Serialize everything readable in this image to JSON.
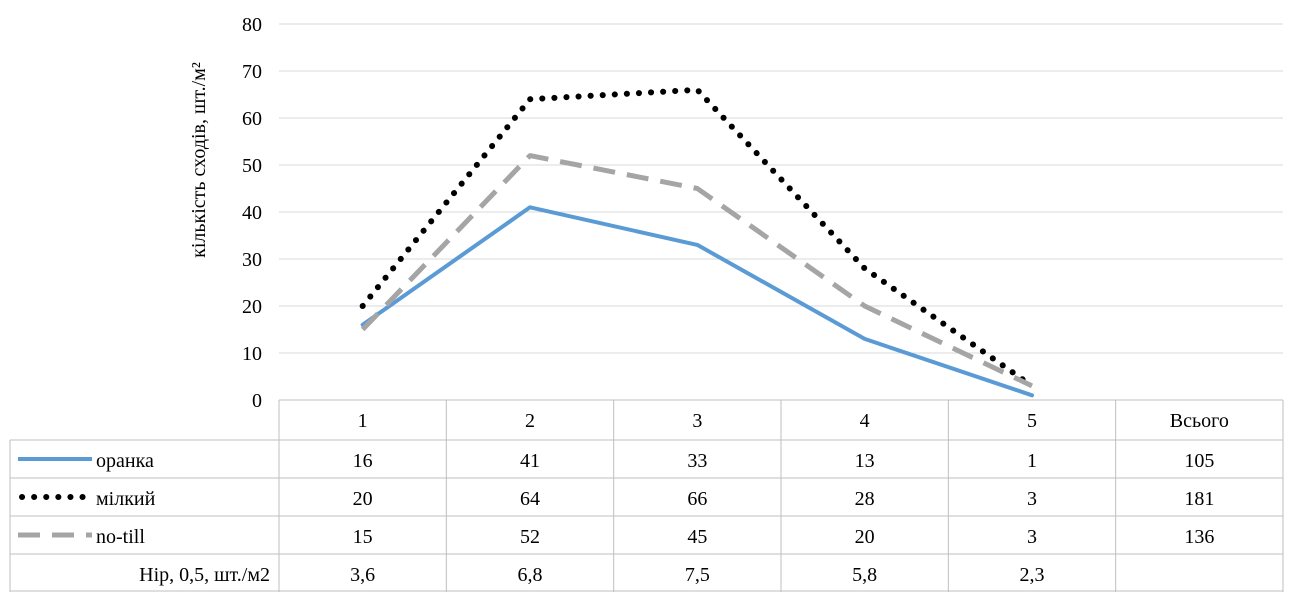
{
  "chart_data": {
    "type": "line",
    "ylabel": "кількість сходів, шт./м²",
    "ylim": [
      0,
      80
    ],
    "yticks": [
      0,
      10,
      20,
      30,
      40,
      50,
      60,
      70,
      80
    ],
    "grid": true,
    "legend": "data-table-left",
    "categories": [
      "1",
      "2",
      "3",
      "4",
      "5"
    ],
    "total_header": "Всього",
    "series": [
      {
        "name": "оранка",
        "values": [
          16,
          41,
          33,
          13,
          1
        ],
        "total": "105",
        "color": "#5b9bd5",
        "style": "solid"
      },
      {
        "name": "мілкий",
        "values": [
          20,
          64,
          66,
          28,
          3
        ],
        "total": "181",
        "color": "#000000",
        "style": "dotted"
      },
      {
        "name": "no-till",
        "values": [
          15,
          52,
          45,
          20,
          3
        ],
        "total": "136",
        "color": "#a5a5a5",
        "style": "dashed"
      }
    ],
    "table_plot_values": [
      [
        16,
        41,
        33,
        13,
        1
      ],
      [
        20,
        64,
        66,
        28,
        3
      ],
      [
        15,
        52,
        45,
        20,
        3
      ]
    ],
    "lsd_row": {
      "label": "Hip, 0,5, шт./м2",
      "values": [
        "3,6",
        "6,8",
        "7,5",
        "5,8",
        "2,3"
      ]
    }
  }
}
